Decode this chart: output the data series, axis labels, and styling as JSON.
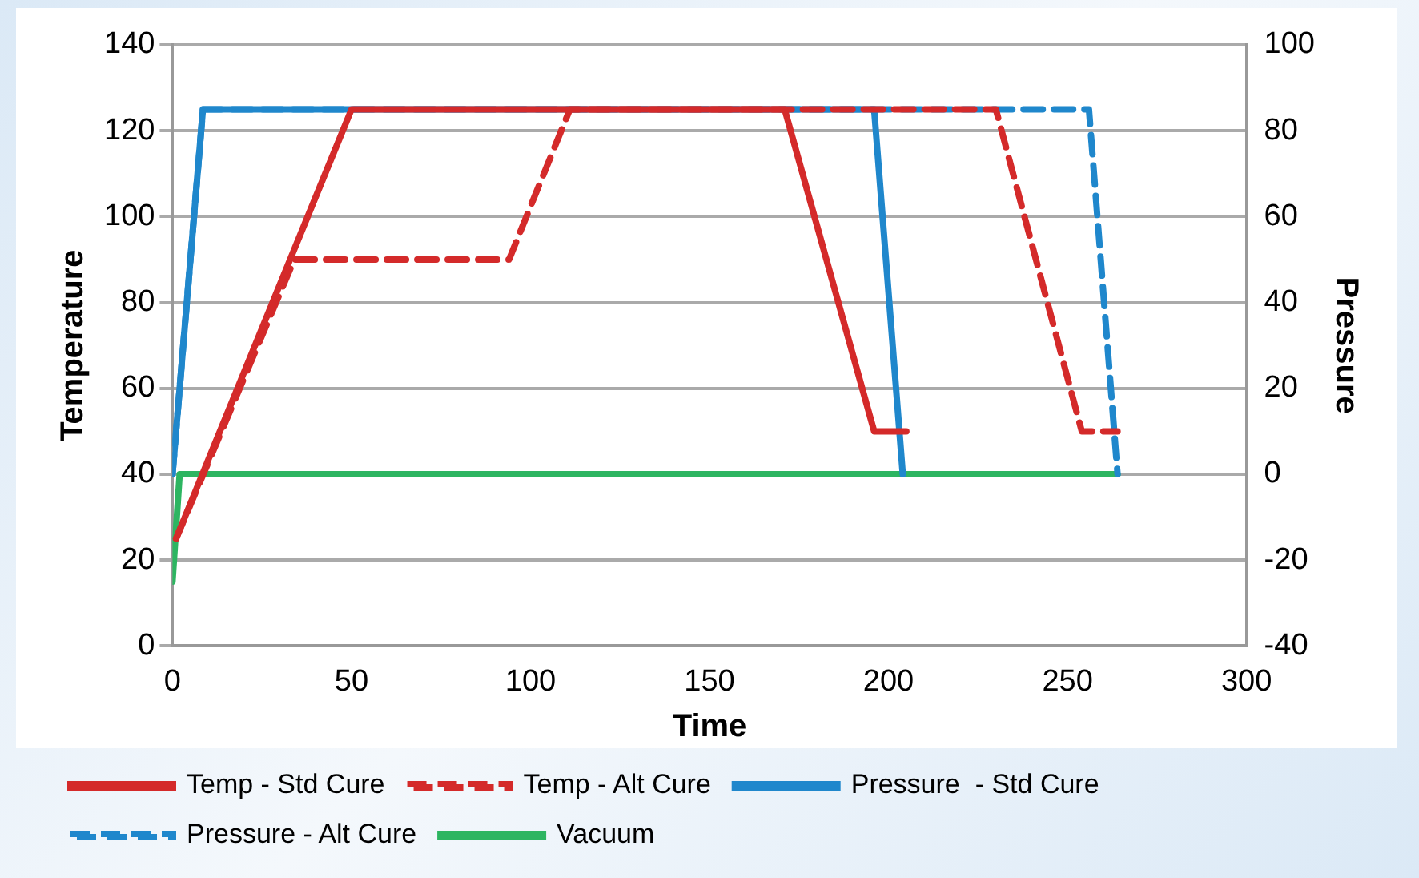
{
  "chart_data": {
    "type": "line",
    "xlabel": "Time",
    "ylabel": "Temperature",
    "y2label": "Pressure",
    "xlim": [
      0,
      300
    ],
    "xticks": [
      0,
      50,
      100,
      150,
      200,
      250,
      300
    ],
    "ylim": [
      0,
      140
    ],
    "yticks": [
      0,
      20,
      40,
      60,
      80,
      100,
      120,
      140
    ],
    "y2lim": [
      -40,
      100
    ],
    "y2ticks": [
      -40,
      -20,
      0,
      20,
      40,
      60,
      80,
      100
    ],
    "grid": "y",
    "legend": "bottom",
    "marker": "none",
    "series": [
      {
        "name": "Temp - Std Cure",
        "color": "#d42a2a",
        "line_style": "solid",
        "x": [
          1,
          50,
          171,
          196,
          205
        ],
        "values": [
          25,
          125,
          125,
          50,
          50
        ]
      },
      {
        "name": "Temp - Alt Cure",
        "color": "#d42a2a",
        "line_style": "dashed",
        "x": [
          1,
          34,
          94,
          111,
          230,
          254,
          264
        ],
        "values": [
          25,
          90,
          90,
          125,
          125,
          50,
          50
        ]
      },
      {
        "name": "Pressure  - Std Cure",
        "color": "#1f87cc",
        "line_style": "solid",
        "axis": "y2",
        "x": [
          0,
          8.5,
          196,
          204
        ],
        "values": [
          0,
          85,
          85,
          0
        ]
      },
      {
        "name": "Pressure - Alt Cure",
        "color": "#1f87cc",
        "line_style": "dashed",
        "axis": "y2",
        "x": [
          0,
          8.5,
          256,
          264
        ],
        "values": [
          0,
          85,
          85,
          0
        ]
      },
      {
        "name": "Vacuum",
        "color": "#2db561",
        "line_style": "solid",
        "axis": "y2",
        "x": [
          0,
          2,
          264
        ],
        "values": [
          -25,
          0,
          0
        ]
      }
    ]
  }
}
